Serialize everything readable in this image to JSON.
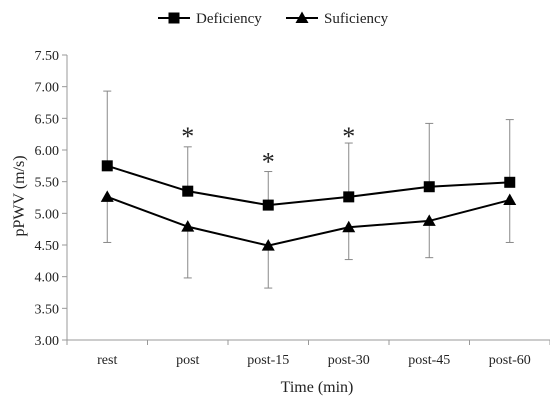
{
  "chart_data": {
    "type": "line",
    "categories": [
      "rest",
      "post",
      "post-15",
      "post-30",
      "post-45",
      "post-60"
    ],
    "series": [
      {
        "name": "Deficiency",
        "marker": "square",
        "values": [
          5.75,
          5.35,
          5.13,
          5.26,
          5.42,
          5.49
        ],
        "error_upper": [
          6.93,
          6.05,
          5.66,
          6.11,
          6.42,
          6.48
        ],
        "error_lower": [
          null,
          null,
          null,
          null,
          null,
          null
        ]
      },
      {
        "name": "Suficiency",
        "marker": "triangle",
        "values": [
          5.26,
          4.79,
          4.49,
          4.78,
          4.88,
          5.21
        ],
        "error_upper": [
          null,
          null,
          null,
          null,
          null,
          null
        ],
        "error_lower": [
          4.54,
          3.98,
          3.82,
          4.27,
          4.3,
          4.54
        ]
      }
    ],
    "xlabel": "Time (min)",
    "ylabel": "pPWV (m/s)",
    "ylim": [
      3.0,
      7.5
    ],
    "yticks": [
      "3.00",
      "3.50",
      "4.00",
      "4.50",
      "5.00",
      "5.50",
      "6.00",
      "6.50",
      "7.00",
      "7.50"
    ],
    "ytick_values": [
      3.0,
      3.5,
      4.0,
      4.5,
      5.0,
      5.5,
      6.0,
      6.5,
      7.0,
      7.5
    ],
    "grid": false,
    "legend_position": "top-center",
    "annotations": [
      {
        "category": "post",
        "text": "*",
        "y": 6.3
      },
      {
        "category": "post-15",
        "text": "*",
        "y": 5.9
      },
      {
        "category": "post-30",
        "text": "*",
        "y": 6.3
      }
    ],
    "colors": {
      "line": "#000000",
      "error_bar": "#888888",
      "axis": "#999999"
    }
  }
}
